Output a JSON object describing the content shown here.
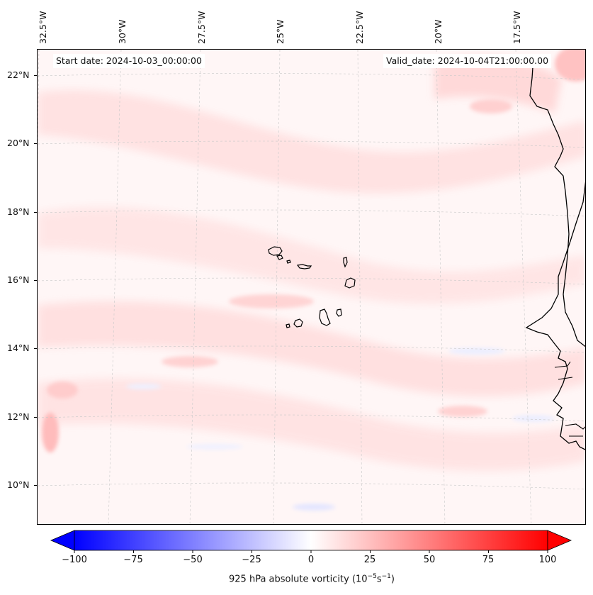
{
  "map": {
    "start_date": "Start date: 2024-10-03_00:00:00",
    "valid_date": "Valid_date: 2024-10-04T21:00:00.00",
    "lon_labels": [
      "32.5°W",
      "30°W",
      "27.5°W",
      "25°W",
      "22.5°W",
      "20°W",
      "17.5°W"
    ],
    "lat_labels": [
      "22°N",
      "20°N",
      "18°N",
      "16°N",
      "14°N",
      "12°N",
      "10°N"
    ],
    "features": [
      "cape-verde-islands",
      "west-african-coastline"
    ]
  },
  "colorbar": {
    "ticks": [
      "−100",
      "−75",
      "−50",
      "−25",
      "0",
      "25",
      "50",
      "75",
      "100"
    ],
    "title_main": "925 hPa absolute vorticity (10",
    "title_exp1": "−5",
    "title_mid": "s",
    "title_exp2": "−1",
    "title_end": ")",
    "min": -100,
    "max": 100,
    "min_color": "#0000ff",
    "mid_color": "#ffffff",
    "max_color": "#ff0000"
  }
}
